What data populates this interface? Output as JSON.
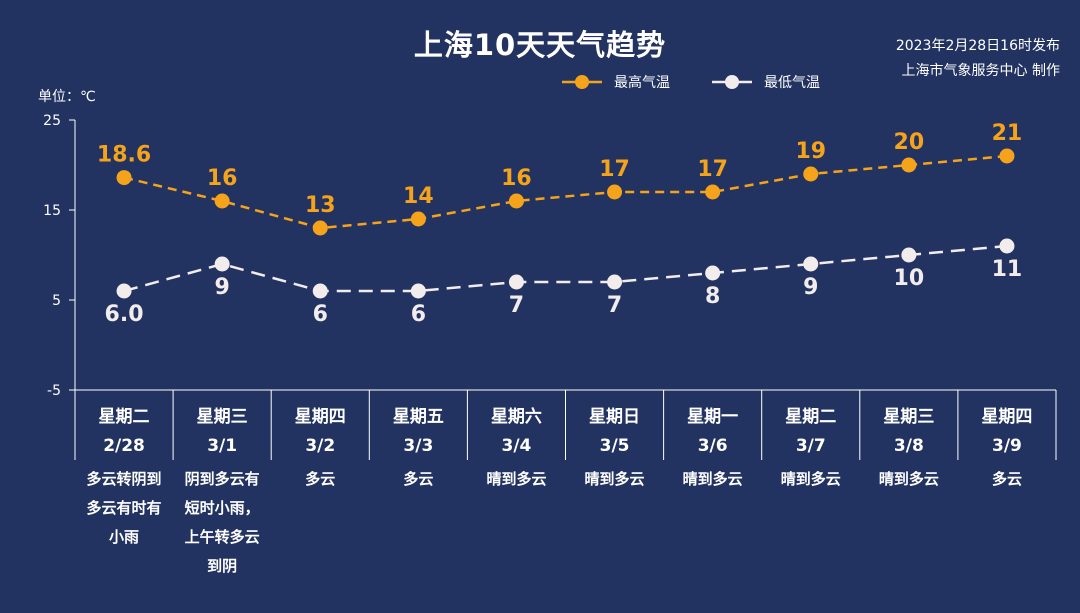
{
  "header": {
    "title": "上海10天天气趋势",
    "publish_time": "2023年2月28日16时发布",
    "publisher": "上海市气象服务中心 制作",
    "unit": "单位：℃"
  },
  "colors": {
    "background": "#233361",
    "high": "#f5a31a",
    "low": "#f3ecec",
    "axis": "#ffffff"
  },
  "chart_data": {
    "type": "line",
    "title": "上海10天天气趋势",
    "ylabel": "单位：℃",
    "ylim": [
      -5,
      25
    ],
    "yticks": [
      25,
      15,
      5,
      -5
    ],
    "grid": false,
    "legend": "top-center",
    "categories": [
      "2/28",
      "3/1",
      "3/2",
      "3/3",
      "3/4",
      "3/5",
      "3/6",
      "3/7",
      "3/8",
      "3/9"
    ],
    "weekdays": [
      "星期二",
      "星期三",
      "星期四",
      "星期五",
      "星期六",
      "星期日",
      "星期一",
      "星期二",
      "星期三",
      "星期四"
    ],
    "weather": [
      [
        "多云转阴到",
        "多云有时有",
        "小雨"
      ],
      [
        "阴到多云有",
        "短时小雨，",
        "上午转多云",
        "到阴"
      ],
      [
        "多云"
      ],
      [
        "多云"
      ],
      [
        "晴到多云"
      ],
      [
        "晴到多云"
      ],
      [
        "晴到多云"
      ],
      [
        "晴到多云"
      ],
      [
        "晴到多云"
      ],
      [
        "多云"
      ]
    ],
    "series": [
      {
        "name": "最高气温",
        "values": [
          18.6,
          16,
          13,
          14,
          16,
          17,
          17,
          19,
          20,
          21
        ],
        "labels": [
          "18.6",
          "16",
          "13",
          "14",
          "16",
          "17",
          "17",
          "19",
          "20",
          "21"
        ]
      },
      {
        "name": "最低气温",
        "values": [
          6.0,
          9,
          6,
          6,
          7,
          7,
          8,
          9,
          10,
          11
        ],
        "labels": [
          "6.0",
          "9",
          "6",
          "6",
          "7",
          "7",
          "8",
          "9",
          "10",
          "11"
        ]
      }
    ]
  }
}
